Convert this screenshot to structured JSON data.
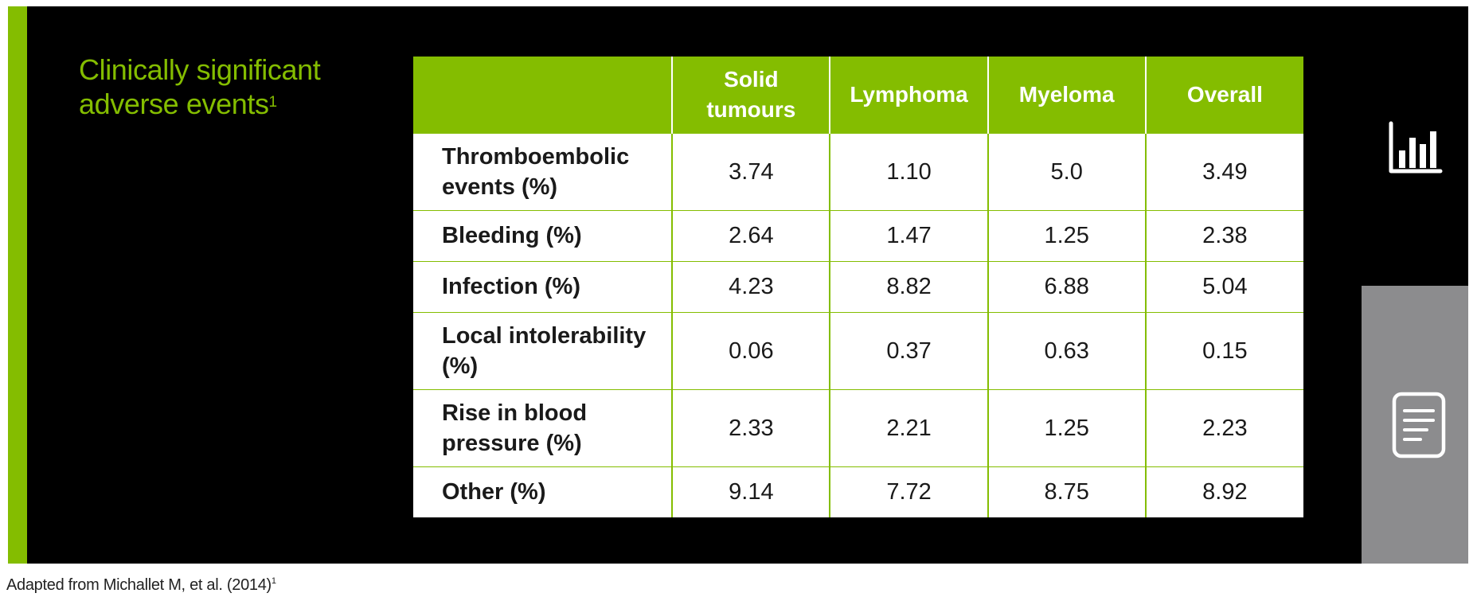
{
  "slide": {
    "title_text": "Clinically significant adverse events",
    "title_superscript": "1"
  },
  "table": {
    "columns": [
      "",
      "Solid tumours",
      "Lymphoma",
      "Myeloma",
      "Overall"
    ],
    "rows": [
      {
        "label": "Thromboembolic events (%)",
        "values": [
          "3.74",
          "1.10",
          "5.0",
          "3.49"
        ]
      },
      {
        "label": "Bleeding (%)",
        "values": [
          "2.64",
          "1.47",
          "1.25",
          "2.38"
        ]
      },
      {
        "label": "Infection (%)",
        "values": [
          "4.23",
          "8.82",
          "6.88",
          "5.04"
        ]
      },
      {
        "label": "Local intolerability (%)",
        "values": [
          "0.06",
          "0.37",
          "0.63",
          "0.15"
        ]
      },
      {
        "label": "Rise in blood pressure (%)",
        "values": [
          "2.33",
          "2.21",
          "1.25",
          "2.23"
        ]
      },
      {
        "label": "Other (%)",
        "values": [
          "9.14",
          "7.72",
          "8.75",
          "8.92"
        ]
      }
    ]
  },
  "sidebar": {
    "icons": [
      {
        "name": "bar-chart-icon"
      },
      {
        "name": "document-icon"
      }
    ]
  },
  "footnote": {
    "text": "Adapted from Michallet M, et al. (2014)",
    "superscript": "1"
  },
  "colors": {
    "accent": "#84bd00",
    "background": "#000000",
    "side_panel": "#8c8c8e",
    "cell_background": "#ffffff"
  }
}
